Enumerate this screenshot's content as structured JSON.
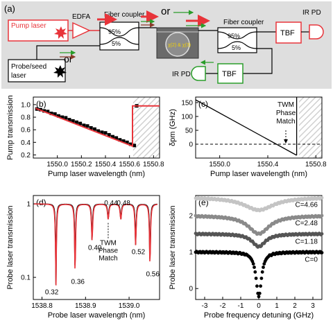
{
  "panel_a": {
    "label": "(a)",
    "pump_laser": "Pump laser",
    "edfa": "EDFA",
    "fiber_coupler_left": "Fiber coupler",
    "fiber_coupler_right": "Fiber coupler",
    "or_top": "or",
    "or_left": "or",
    "coupler_left_95": "95%",
    "coupler_left_5": "5%",
    "coupler_right_95": "95%",
    "coupler_right_5": "5%",
    "probe_laser_line1": "Probe/seed",
    "probe_laser_line2": "laser",
    "tbf_top": "TBF",
    "tbf_bottom": "TBF",
    "ir_pd_top": "IR PD",
    "ir_pd_bottom": "IR PD",
    "device_label": "χ(2) & χ(3)",
    "colors": {
      "pump": "#e8343a",
      "probe_seed": "#2a9d2a",
      "generated": "#8b3a2a",
      "tbf_box": "#2a9d2a",
      "panel_bg": "#dedede"
    }
  },
  "chart_data": [
    {
      "id": "b",
      "type": "line",
      "label": "(b)",
      "xlabel": "Pump laser wavelength (nm)",
      "ylabel": "Pump transmission",
      "xlim": [
        1549.8,
        1550.85
      ],
      "ylim": [
        0.15,
        1.12
      ],
      "xticks": [
        "1550.0",
        "1550.2",
        "1550.4",
        "1550.6",
        "1550.8"
      ],
      "yticks": [
        "0.2",
        "0.4",
        "0.6",
        "0.8",
        "1.0"
      ],
      "series": [
        {
          "style": "markers",
          "x": [
            1549.83,
            1549.86,
            1549.89,
            1549.92,
            1549.95,
            1549.98,
            1550.01,
            1550.04,
            1550.07,
            1550.1,
            1550.13,
            1550.16,
            1550.19,
            1550.22,
            1550.25,
            1550.28,
            1550.31,
            1550.34,
            1550.37,
            1550.4,
            1550.43,
            1550.46,
            1550.49,
            1550.52,
            1550.55,
            1550.58,
            1550.61,
            1550.64,
            1550.66
          ],
          "y": [
            0.93,
            0.92,
            0.9,
            0.89,
            0.86,
            0.85,
            0.82,
            0.8,
            0.79,
            0.76,
            0.74,
            0.72,
            0.7,
            0.67,
            0.66,
            0.63,
            0.61,
            0.58,
            0.56,
            0.55,
            0.52,
            0.49,
            0.47,
            0.44,
            0.42,
            0.4,
            0.37,
            0.35,
            0.98
          ]
        },
        {
          "style": "line",
          "x": [
            1549.82,
            1550.625,
            1550.625,
            1550.85
          ],
          "y": [
            0.94,
            0.34,
            0.98,
            0.98
          ]
        }
      ],
      "shaded_from": 1550.63
    },
    {
      "id": "c",
      "type": "line",
      "label": "(c)",
      "xlabel": "Pump laser wavelength (nm)",
      "ylabel": "δpm (GHz)",
      "xlim": [
        1549.8,
        1550.85
      ],
      "ylim": [
        -50,
        170
      ],
      "xticks": [
        "1550.0",
        "1550.4",
        "1550.8"
      ],
      "yticks": [
        "0",
        "50",
        "100",
        "150"
      ],
      "series": [
        {
          "x": [
            1549.8,
            1550.64
          ],
          "y": [
            160,
            -40
          ]
        }
      ],
      "zero_line": true,
      "annotation": [
        "TWM",
        "Phase",
        "Match"
      ],
      "annotation_x": 1550.55,
      "shaded_from": 1550.66
    },
    {
      "id": "d",
      "type": "line",
      "label": "(d)",
      "xlabel": "Probe laser wavelength (nm)",
      "ylabel": "Probe laser transmission",
      "scale_y": "log",
      "xlim": [
        1538.78,
        1539.07
      ],
      "ylim": [
        0.05,
        1.3
      ],
      "xticks": [
        "1538.8",
        "1538.9",
        "1539.0"
      ],
      "yticks": [
        "0.1",
        "1"
      ],
      "dips": [
        {
          "x": 1538.832,
          "depth": 0.08,
          "label": "0.32"
        },
        {
          "x": 1538.876,
          "depth": 0.11,
          "label": "0.36"
        },
        {
          "x": 1538.915,
          "depth": 0.32,
          "label": "0.40"
        },
        {
          "x": 1538.952,
          "depth": 0.62,
          "label": "0.44"
        },
        {
          "x": 1538.981,
          "depth": 0.62,
          "label": "0.48"
        },
        {
          "x": 1539.015,
          "depth": 0.28,
          "label": "0.52"
        },
        {
          "x": 1539.048,
          "depth": 0.14,
          "label": "0.56"
        }
      ],
      "annotation": [
        "TWM",
        "Phase",
        "Match"
      ],
      "series_colors": [
        "#000000",
        "#e8343a"
      ]
    },
    {
      "id": "e",
      "type": "scatter",
      "label": "(e)",
      "xlabel": "Probe frequency detuning (GHz)",
      "ylabel": "Probe laser transmission",
      "xlim": [
        -3.5,
        3.5
      ],
      "ylim": [
        -0.3,
        2.55
      ],
      "xticks": [
        "-3",
        "-2",
        "-1",
        "0",
        "1",
        "2",
        "3"
      ],
      "yticks": [
        "0",
        "1",
        "2"
      ],
      "series": [
        {
          "name": "C=0",
          "offset": 0.0,
          "dip_depth": 1.2,
          "width": 0.18,
          "color": "#000000"
        },
        {
          "name": "C=1.18",
          "offset": 0.5,
          "dip_depth": 0.35,
          "width": 0.45,
          "color": "#555555"
        },
        {
          "name": "C=2.48",
          "offset": 1.0,
          "dip_depth": 0.5,
          "width": 0.7,
          "color": "#8a8a8a"
        },
        {
          "name": "C=4.66",
          "offset": 1.5,
          "dip_depth": 0.35,
          "width": 1.0,
          "color": "#c4c4c4"
        }
      ]
    }
  ]
}
